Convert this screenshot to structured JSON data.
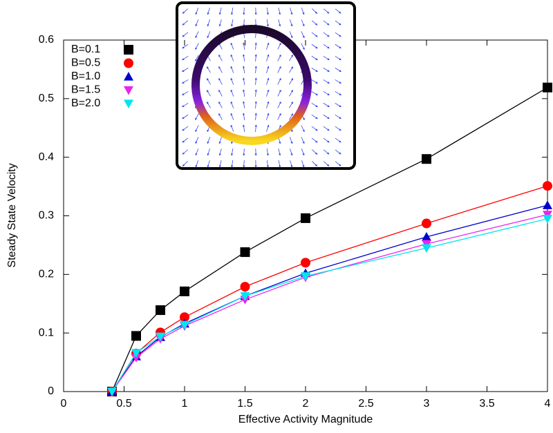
{
  "chart_data": {
    "type": "line",
    "x_label": "Effective Activity Magnitude",
    "y_label": "Steady State Velocity",
    "x": [
      0.4,
      0.6,
      0.8,
      1,
      1.5,
      2,
      3,
      4
    ],
    "series": [
      {
        "name": "B=0.1",
        "color": "#000000",
        "marker": "square",
        "values": [
          0,
          0.095,
          0.139,
          0.171,
          0.238,
          0.296,
          0.397,
          0.519
        ]
      },
      {
        "name": "B=0.5",
        "color": "#ff0000",
        "marker": "circle",
        "values": [
          0,
          0.065,
          0.101,
          0.127,
          0.179,
          0.22,
          0.287,
          0.351
        ]
      },
      {
        "name": "B=1.0",
        "color": "#0000cc",
        "marker": "triangle-up",
        "values": [
          0,
          0.06,
          0.093,
          0.116,
          0.163,
          0.202,
          0.264,
          0.318
        ]
      },
      {
        "name": "B=1.5",
        "color": "#ee22ee",
        "marker": "triangle-down",
        "values": [
          0,
          0.058,
          0.09,
          0.112,
          0.157,
          0.195,
          0.252,
          0.302
        ]
      },
      {
        "name": "B=2.0",
        "color": "#00e5ee",
        "marker": "triangle-down",
        "values": [
          0,
          0.066,
          0.094,
          0.114,
          0.163,
          0.197,
          0.245,
          0.295
        ]
      }
    ],
    "xlim": [
      0,
      4
    ],
    "xticks": [
      0,
      0.5,
      1,
      1.5,
      2,
      2.5,
      3,
      3.5,
      4
    ],
    "ylim": [
      0,
      0.6
    ],
    "yticks": [
      0,
      0.1,
      0.2,
      0.3,
      0.4,
      0.5,
      0.6
    ],
    "legend": "top-left"
  }
}
